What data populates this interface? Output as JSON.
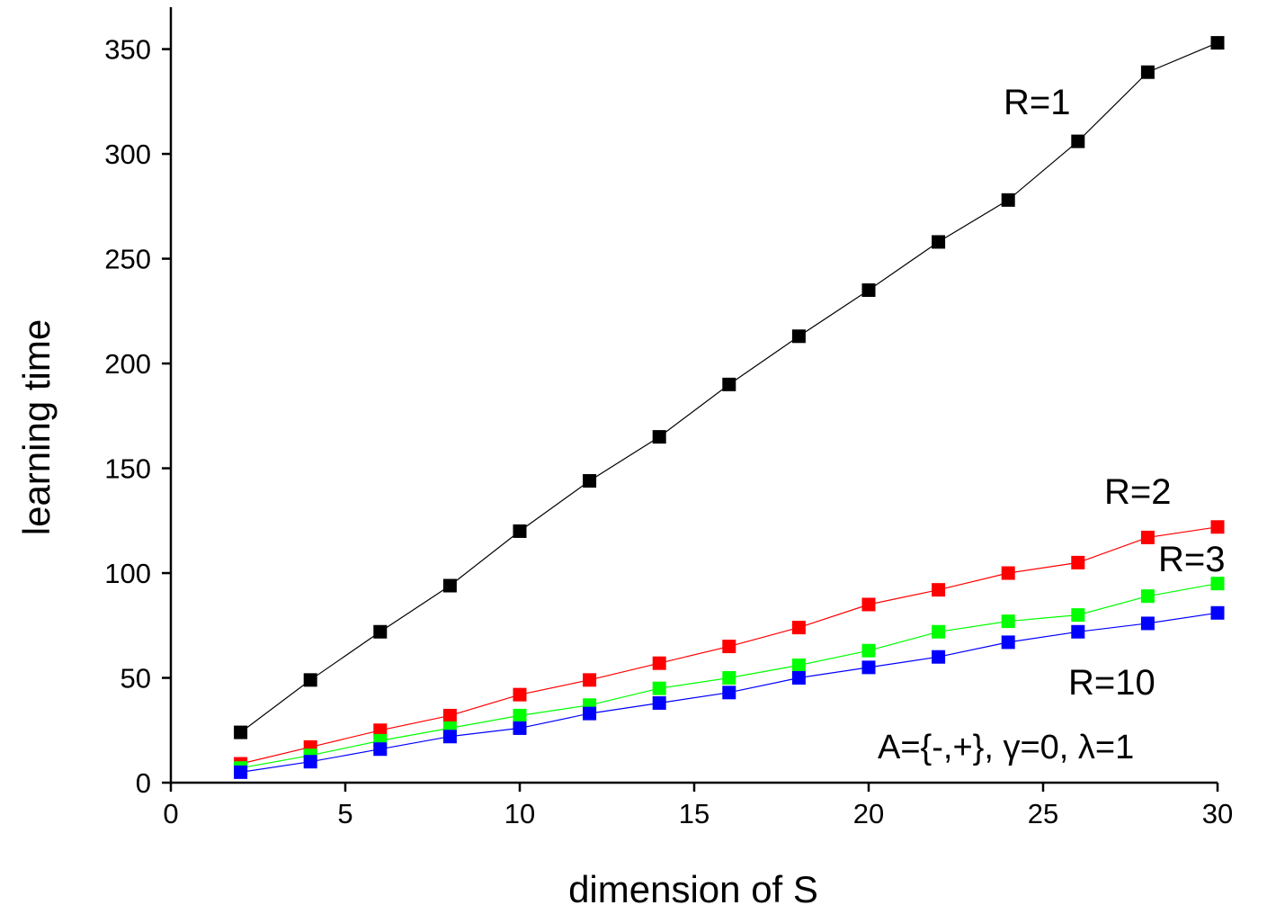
{
  "chart_data": {
    "type": "line",
    "title": "",
    "xlabel": "dimension of S",
    "ylabel": "learning time",
    "xlim": [
      0,
      30
    ],
    "ylim": [
      0,
      370
    ],
    "xticks": [
      0,
      5,
      10,
      15,
      20,
      25,
      30
    ],
    "yticks": [
      0,
      50,
      100,
      150,
      200,
      250,
      300,
      350
    ],
    "grid": false,
    "x": [
      2,
      4,
      6,
      8,
      10,
      12,
      14,
      16,
      18,
      20,
      22,
      24,
      26,
      28,
      30
    ],
    "series": [
      {
        "name": "R=1",
        "color": "#000000",
        "values": [
          24,
          49,
          72,
          94,
          120,
          144,
          165,
          190,
          213,
          235,
          258,
          278,
          306,
          339,
          353
        ]
      },
      {
        "name": "R=2",
        "color": "#ff0000",
        "values": [
          9,
          17,
          25,
          32,
          42,
          49,
          57,
          65,
          74,
          85,
          92,
          100,
          105,
          117,
          122
        ]
      },
      {
        "name": "R=3",
        "color": "#00ff00",
        "values": [
          7,
          13,
          20,
          26,
          32,
          37,
          45,
          50,
          56,
          63,
          72,
          77,
          80,
          89,
          95
        ]
      },
      {
        "name": "R=10",
        "color": "#0000ff",
        "values": [
          5,
          10,
          16,
          22,
          26,
          33,
          38,
          43,
          50,
          55,
          60,
          67,
          72,
          76,
          81
        ]
      }
    ],
    "annotation": "A={-,+}, γ=0, λ=1"
  }
}
